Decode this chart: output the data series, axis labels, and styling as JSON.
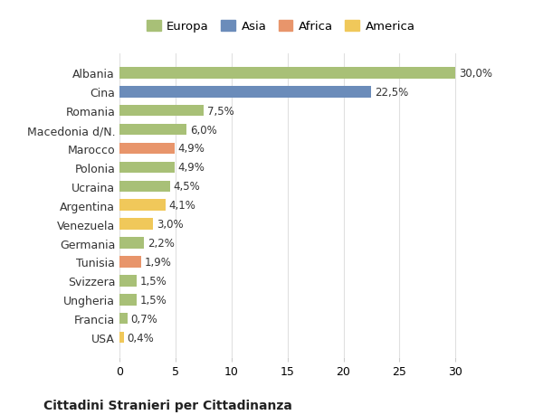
{
  "categories": [
    "Albania",
    "Cina",
    "Romania",
    "Macedonia d/N.",
    "Marocco",
    "Polonia",
    "Ucraina",
    "Argentina",
    "Venezuela",
    "Germania",
    "Tunisia",
    "Svizzera",
    "Ungheria",
    "Francia",
    "USA"
  ],
  "values": [
    30.0,
    22.5,
    7.5,
    6.0,
    4.9,
    4.9,
    4.5,
    4.1,
    3.0,
    2.2,
    1.9,
    1.5,
    1.5,
    0.7,
    0.4
  ],
  "labels": [
    "30,0%",
    "22,5%",
    "7,5%",
    "6,0%",
    "4,9%",
    "4,9%",
    "4,5%",
    "4,1%",
    "3,0%",
    "2,2%",
    "1,9%",
    "1,5%",
    "1,5%",
    "0,7%",
    "0,4%"
  ],
  "continents": [
    "Europa",
    "Asia",
    "Europa",
    "Europa",
    "Africa",
    "Europa",
    "Europa",
    "America",
    "America",
    "Europa",
    "Africa",
    "Europa",
    "Europa",
    "Europa",
    "America"
  ],
  "colors": {
    "Europa": "#a8c077",
    "Asia": "#6b8cba",
    "Africa": "#e8956b",
    "America": "#f0c85a"
  },
  "legend_order": [
    "Europa",
    "Asia",
    "Africa",
    "America"
  ],
  "title": "Cittadini Stranieri per Cittadinanza",
  "xlabel": "",
  "xlim": [
    0,
    32
  ],
  "xticks": [
    0,
    5,
    10,
    15,
    20,
    25,
    30
  ],
  "background_color": "#ffffff",
  "grid_color": "#e0e0e0",
  "bar_height": 0.6,
  "figsize": [
    6.0,
    4.6
  ],
  "dpi": 100
}
